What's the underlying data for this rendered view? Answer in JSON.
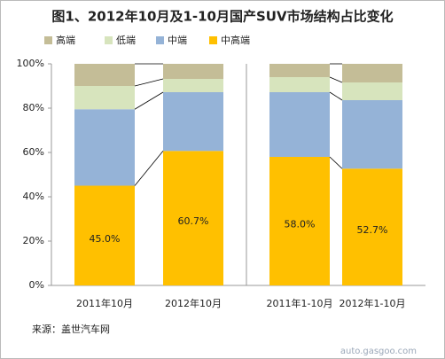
{
  "chart_data": {
    "type": "stacked_bar",
    "title": "图1、2012年10月及1-10月国产SUV市场结构占比变化",
    "categories": [
      "2011年10月",
      "2012年10月",
      "2011年1-10月",
      "2012年1-10月"
    ],
    "series": [
      {
        "name": "高端",
        "color": "#c4bd97",
        "values": [
          10.0,
          6.8,
          6.0,
          8.4
        ]
      },
      {
        "name": "低端",
        "color": "#d7e4bd",
        "values": [
          10.5,
          6.0,
          6.8,
          8.0
        ]
      },
      {
        "name": "中端",
        "color": "#95b3d7",
        "values": [
          34.5,
          26.5,
          29.2,
          30.9
        ]
      },
      {
        "name": "中高端",
        "color": "#ffc000",
        "values": [
          45.0,
          60.7,
          58.0,
          52.7
        ],
        "value_labels": [
          "45.0%",
          "60.7%",
          "58.0%",
          "52.7%"
        ]
      }
    ],
    "ylim": [
      0,
      100
    ],
    "yticks": [
      {
        "value": 0,
        "label": "0%"
      },
      {
        "value": 20,
        "label": "20%"
      },
      {
        "value": 40,
        "label": "40%"
      },
      {
        "value": 60,
        "label": "60%"
      },
      {
        "value": 80,
        "label": "80%"
      },
      {
        "value": 100,
        "label": "100%"
      }
    ],
    "source": "来源：盖世汽车网",
    "watermark": "auto.gasgoo.com"
  }
}
